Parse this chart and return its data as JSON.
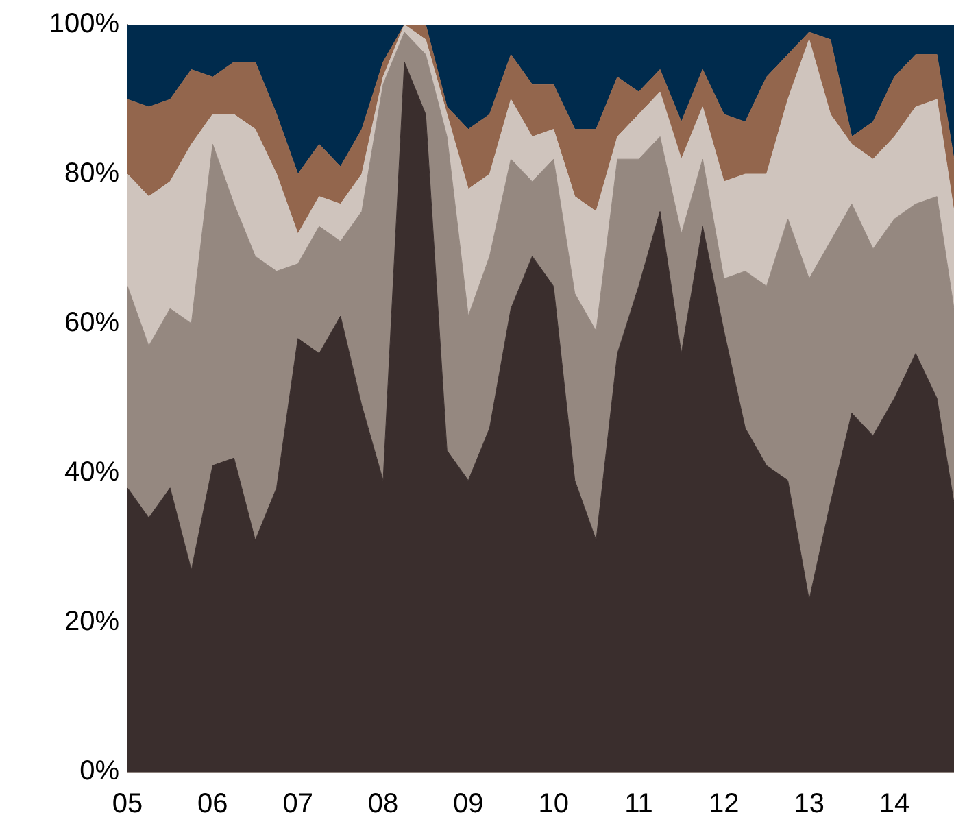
{
  "chart_data": {
    "type": "area",
    "stacked": true,
    "x": [
      2005,
      2005.25,
      2005.5,
      2005.75,
      2006,
      2006.25,
      2006.5,
      2006.75,
      2007,
      2007.25,
      2007.5,
      2007.75,
      2008,
      2008.25,
      2008.5,
      2008.75,
      2009,
      2009.25,
      2009.5,
      2009.75,
      2010,
      2010.25,
      2010.5,
      2010.75,
      2011,
      2011.25,
      2011.5,
      2011.75,
      2012,
      2012.25,
      2012.5,
      2012.75,
      2013,
      2013.25,
      2013.5,
      2013.75,
      2014,
      2014.25,
      2014.5,
      2014.7
    ],
    "series": [
      {
        "color": "#3a2e2d",
        "values": [
          38,
          34,
          38,
          27,
          41,
          42,
          31,
          38,
          58,
          56,
          61,
          49,
          39,
          95,
          88,
          43,
          39,
          46,
          62,
          69,
          65,
          39,
          31,
          56,
          65,
          75,
          56,
          73,
          59,
          46,
          41,
          39,
          23,
          36,
          48,
          45,
          50,
          56,
          50,
          36
        ]
      },
      {
        "color": "#958880",
        "values": [
          27,
          23,
          24,
          33,
          43,
          34,
          38,
          29,
          10,
          17,
          10,
          26,
          53,
          4,
          8,
          42,
          22,
          23,
          20,
          10,
          17,
          25,
          28,
          26,
          17,
          10,
          16,
          9,
          7,
          21,
          24,
          35,
          43,
          35,
          28,
          25,
          24,
          20,
          27,
          26
        ]
      },
      {
        "color": "#cfc4bd",
        "values": [
          15,
          20,
          17,
          24,
          4,
          12,
          17,
          13,
          4,
          4,
          5,
          5,
          1,
          1,
          2,
          3,
          17,
          11,
          8,
          6,
          4,
          13,
          16,
          3,
          6,
          6,
          10,
          7,
          13,
          13,
          15,
          16,
          32,
          17,
          8,
          12,
          11,
          13,
          13,
          13
        ]
      },
      {
        "color": "#93664d",
        "values": [
          10,
          12,
          11,
          10,
          5,
          7,
          9,
          8,
          8,
          7,
          5,
          6,
          2,
          0,
          2,
          1,
          8,
          8,
          6,
          7,
          6,
          9,
          11,
          8,
          3,
          3,
          5,
          5,
          9,
          7,
          13,
          6,
          1,
          10,
          1,
          5,
          8,
          7,
          6,
          7
        ]
      },
      {
        "color": "#002b4d",
        "values": [
          10,
          11,
          10,
          6,
          7,
          5,
          5,
          12,
          20,
          16,
          19,
          14,
          5,
          0,
          0,
          11,
          14,
          12,
          4,
          8,
          8,
          14,
          14,
          7,
          9,
          6,
          13,
          6,
          12,
          13,
          7,
          4,
          1,
          2,
          15,
          13,
          7,
          4,
          4,
          18
        ]
      }
    ],
    "xlim": [
      2005,
      2014.7
    ],
    "xticks": [
      {
        "value": 2005,
        "label": "05"
      },
      {
        "value": 2006,
        "label": "06"
      },
      {
        "value": 2007,
        "label": "07"
      },
      {
        "value": 2008,
        "label": "08"
      },
      {
        "value": 2009,
        "label": "09"
      },
      {
        "value": 2010,
        "label": "10"
      },
      {
        "value": 2011,
        "label": "11"
      },
      {
        "value": 2012,
        "label": "12"
      },
      {
        "value": 2013,
        "label": "13"
      },
      {
        "value": 2014,
        "label": "14"
      }
    ],
    "ylim": [
      0,
      100
    ],
    "yticks": [
      {
        "value": 0,
        "label": "0%"
      },
      {
        "value": 20,
        "label": "20%"
      },
      {
        "value": 40,
        "label": "40%"
      },
      {
        "value": 60,
        "label": "60%"
      },
      {
        "value": 80,
        "label": "80%"
      },
      {
        "value": 100,
        "label": "100%"
      }
    ]
  }
}
